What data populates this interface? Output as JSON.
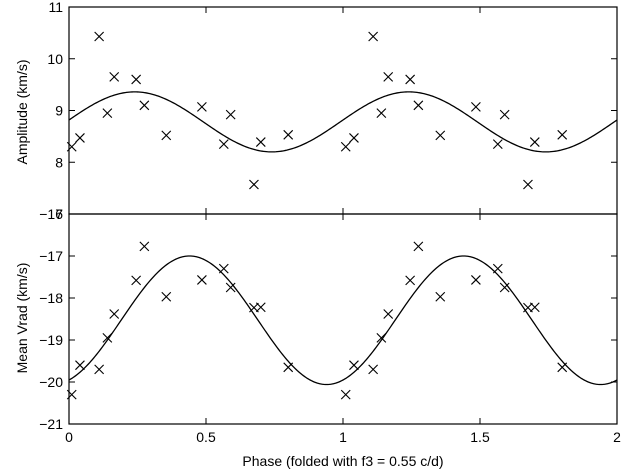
{
  "chart_data": [
    {
      "type": "scatter",
      "panel": "top",
      "ylabel": "Amplitude (km/s)",
      "xlim": [
        0,
        2
      ],
      "ylim": [
        7,
        11
      ],
      "yticks": [
        7,
        8,
        9,
        10,
        11
      ],
      "ytick_labels": [
        "7",
        "8",
        "9",
        "10",
        "11"
      ],
      "points": {
        "x": [
          0.01,
          0.04,
          0.11,
          0.14,
          0.165,
          0.245,
          0.275,
          0.355,
          0.485,
          0.565,
          0.59,
          0.675,
          0.7,
          0.8,
          1.01,
          1.04,
          1.11,
          1.14,
          1.165,
          1.245,
          1.275,
          1.355,
          1.485,
          1.565,
          1.59,
          1.675,
          1.7,
          1.8
        ],
        "y": [
          8.3,
          8.47,
          10.43,
          8.95,
          9.65,
          9.6,
          9.1,
          8.52,
          9.07,
          8.35,
          8.92,
          7.57,
          8.39,
          8.53,
          8.3,
          8.47,
          10.43,
          8.95,
          9.65,
          9.6,
          9.1,
          8.52,
          9.07,
          8.35,
          8.92,
          7.57,
          8.39,
          8.53
        ]
      },
      "fit": {
        "model": "sine",
        "mean": 8.78,
        "amplitude": 0.58,
        "phase_of_max": 0.24,
        "period": 1.0
      }
    },
    {
      "type": "scatter",
      "panel": "bottom",
      "ylabel": "Mean Vrad (km/s)",
      "xlabel": "Phase (folded with f3 = 0.55 c/d)",
      "xlim": [
        0,
        2
      ],
      "ylim": [
        -21,
        -16
      ],
      "yticks": [
        -21,
        -20,
        -19,
        -18,
        -17,
        -16
      ],
      "ytick_labels": [
        "−21",
        "−20",
        "−19",
        "−18",
        "−17",
        "−16"
      ],
      "xticks": [
        0,
        0.5,
        1,
        1.5,
        2
      ],
      "xtick_labels": [
        "0",
        "0.5",
        "1",
        "1.5",
        "2"
      ],
      "points": {
        "x": [
          0.01,
          0.04,
          0.11,
          0.14,
          0.165,
          0.245,
          0.275,
          0.355,
          0.485,
          0.565,
          0.59,
          0.675,
          0.7,
          0.8,
          1.01,
          1.04,
          1.11,
          1.14,
          1.165,
          1.245,
          1.275,
          1.355,
          1.485,
          1.565,
          1.59,
          1.675,
          1.7,
          1.8
        ],
        "y": [
          -20.3,
          -19.6,
          -19.7,
          -18.95,
          -18.38,
          -17.58,
          -16.77,
          -17.97,
          -17.57,
          -17.3,
          -17.75,
          -18.23,
          -18.22,
          -19.65,
          -20.3,
          -19.6,
          -19.7,
          -18.95,
          -18.38,
          -17.58,
          -16.77,
          -17.97,
          -17.57,
          -17.3,
          -17.75,
          -18.23,
          -18.22,
          -19.65
        ]
      },
      "fit": {
        "model": "sine",
        "mean": -18.53,
        "amplitude": 1.53,
        "phase_of_max": 0.44,
        "period": 1.0
      }
    }
  ]
}
